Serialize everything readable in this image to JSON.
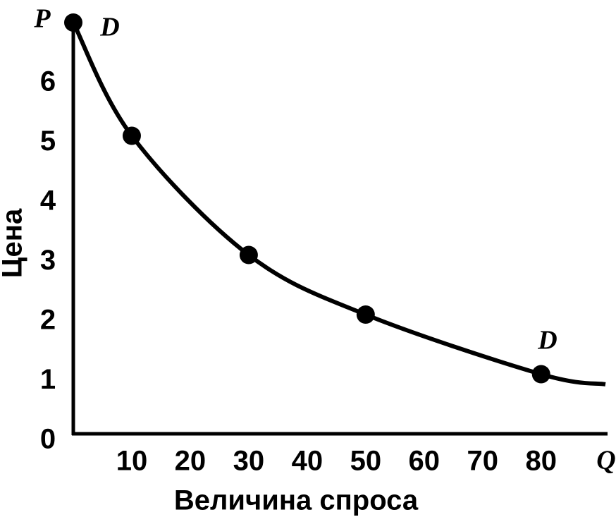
{
  "chart_data": {
    "type": "line",
    "y_axis_label": "Цена",
    "x_axis_label": "Величина спроса",
    "y_axis_symbol": "P",
    "x_axis_symbol": "Q",
    "curve_labels": [
      "D",
      "D"
    ],
    "x": [
      0,
      10,
      30,
      50,
      80
    ],
    "values": [
      6.9,
      5,
      3,
      2,
      1
    ],
    "curve": {
      "x": [
        0,
        10,
        30,
        50,
        80,
        91
      ],
      "values": [
        6.9,
        5,
        3,
        2,
        1,
        0.83
      ]
    },
    "color": "#000000",
    "xlim": [
      0,
      91
    ],
    "ylim": [
      0,
      7
    ],
    "xticks": [
      10,
      20,
      30,
      40,
      50,
      60,
      70,
      80
    ],
    "yticks": [
      0,
      1,
      2,
      3,
      4,
      5,
      6
    ],
    "grid": false
  }
}
